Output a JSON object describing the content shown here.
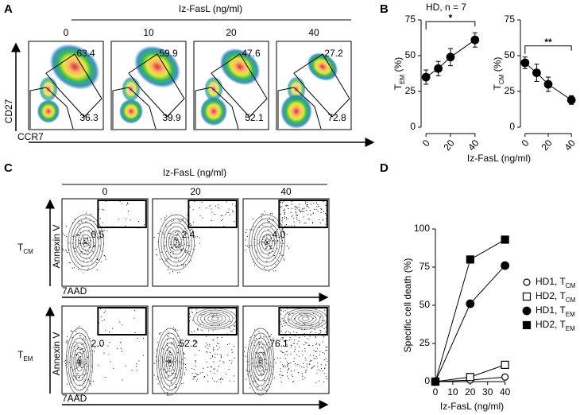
{
  "panels": {
    "A": {
      "label": "A",
      "header": "Iz-FasL (ng/ml)",
      "columns": [
        "0",
        "10",
        "20",
        "40"
      ],
      "y_axis": "CD27",
      "x_axis": "CCR7",
      "gates": [
        [
          "63.4",
          "36.3"
        ],
        [
          "59.9",
          "39.9"
        ],
        [
          "47.6",
          "52.1"
        ],
        [
          "27.2",
          "72.8"
        ]
      ]
    },
    "B": {
      "label": "B"
    },
    "C": {
      "label": "C",
      "header": "Iz-FasL (ng/ml)",
      "columns": [
        "0",
        "20",
        "40"
      ],
      "y_axis": "Annexin V",
      "x_axis": "7AAD",
      "rows": [
        {
          "label": "T",
          "sub": "CM",
          "gates": [
            "0.5",
            "2.4",
            "4.0"
          ]
        },
        {
          "label": "T",
          "sub": "EM",
          "gates": [
            "2.0",
            "52.2",
            "76.1"
          ]
        }
      ]
    },
    "D": {
      "label": "D"
    }
  },
  "chart_data": [
    {
      "type": "line",
      "title": "HD, n = 7",
      "y_label": {
        "text": "T",
        "sub": "EM",
        "unit": " (%)"
      },
      "x": [
        0,
        10,
        20,
        40
      ],
      "values": [
        35,
        41,
        49,
        61
      ],
      "errors": [
        5,
        5,
        6,
        5
      ],
      "color": "#000000",
      "xlim": [
        -4,
        44
      ],
      "xticks": [
        0,
        20,
        40
      ],
      "ylim": [
        0,
        75
      ],
      "yticks": [
        0,
        25,
        50,
        75
      ],
      "x_label": "Iz-FasL (ng/ml)",
      "annotation": "*"
    },
    {
      "type": "line",
      "y_label": {
        "text": "T",
        "sub": "CM",
        "unit": " (%)"
      },
      "x": [
        0,
        10,
        20,
        40
      ],
      "values": [
        45,
        38,
        30,
        19
      ],
      "errors": [
        4,
        6,
        5,
        3
      ],
      "color": "#000000",
      "xlim": [
        -4,
        44
      ],
      "xticks": [
        0,
        20,
        40
      ],
      "ylim": [
        0,
        75
      ],
      "yticks": [
        0,
        25,
        50,
        75
      ],
      "annotation": "**"
    },
    {
      "type": "line",
      "y_label": "Specific cell death (%)",
      "x_label": "Iz-FasL (ng/ml)",
      "x": [
        0,
        20,
        40
      ],
      "xlim": [
        0,
        42
      ],
      "xticks": [
        0,
        10,
        20,
        30,
        40
      ],
      "ylim": [
        0,
        100
      ],
      "yticks": [
        0,
        25,
        50,
        75,
        100
      ],
      "series": [
        {
          "name": "HD1, T",
          "name_sub": "CM",
          "color": "#000000",
          "marker": "circle",
          "filled": false,
          "values": [
            0,
            1,
            3
          ]
        },
        {
          "name": "HD2, T",
          "name_sub": "CM",
          "color": "#000000",
          "marker": "square",
          "filled": false,
          "values": [
            0,
            3,
            11
          ]
        },
        {
          "name": "HD1, T",
          "name_sub": "EM",
          "color": "#000000",
          "marker": "circle",
          "filled": true,
          "values": [
            0,
            51,
            76
          ]
        },
        {
          "name": "HD2, T",
          "name_sub": "EM",
          "color": "#000000",
          "marker": "square",
          "filled": true,
          "values": [
            0,
            80,
            93
          ]
        }
      ]
    }
  ]
}
